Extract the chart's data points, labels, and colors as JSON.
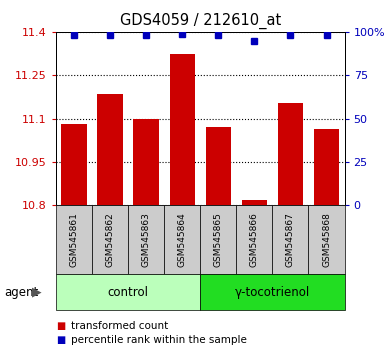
{
  "title": "GDS4059 / 212610_at",
  "samples": [
    "GSM545861",
    "GSM545862",
    "GSM545863",
    "GSM545864",
    "GSM545865",
    "GSM545866",
    "GSM545867",
    "GSM545868"
  ],
  "transformed_counts": [
    11.08,
    11.185,
    11.1,
    11.325,
    11.07,
    10.82,
    11.155,
    11.065
  ],
  "percentile_ranks": [
    98,
    98,
    98,
    99,
    98,
    95,
    98,
    98
  ],
  "ylim_left": [
    10.8,
    11.4
  ],
  "ylim_right": [
    0,
    100
  ],
  "yticks_left": [
    10.8,
    10.95,
    11.1,
    11.25,
    11.4
  ],
  "ytick_labels_left": [
    "10.8",
    "10.95",
    "11.1",
    "11.25",
    "11.4"
  ],
  "yticks_right": [
    0,
    25,
    50,
    75,
    100
  ],
  "ytick_labels_right": [
    "0",
    "25",
    "50",
    "75",
    "100%"
  ],
  "bar_color": "#cc0000",
  "dot_color": "#0000bb",
  "bar_width": 0.7,
  "groups": [
    {
      "label": "control",
      "indices": [
        0,
        1,
        2,
        3
      ],
      "color": "#bbffbb"
    },
    {
      "label": "γ-tocotrienol",
      "indices": [
        4,
        5,
        6,
        7
      ],
      "color": "#22dd22"
    }
  ],
  "agent_label": "agent",
  "legend_items": [
    {
      "color": "#cc0000",
      "label": "transformed count"
    },
    {
      "color": "#0000bb",
      "label": "percentile rank within the sample"
    }
  ],
  "grid_color": "#000000",
  "sample_box_color": "#cccccc",
  "title_fontsize": 10.5,
  "tick_fontsize": 8,
  "sample_fontsize": 6.5,
  "group_fontsize": 8.5,
  "legend_fontsize": 7.5
}
